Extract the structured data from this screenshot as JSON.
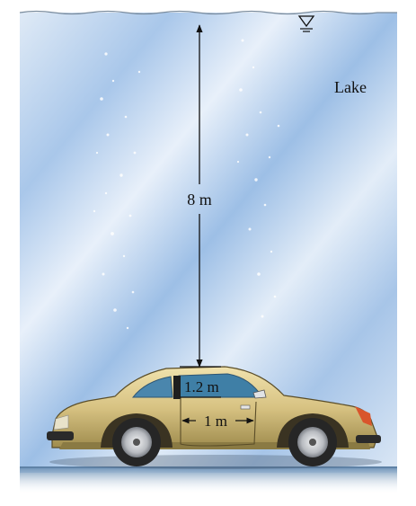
{
  "figure": {
    "environment_label": "Lake",
    "depth_label": "8 m",
    "door_height_label": "1.2 m",
    "door_width_label": "1 m",
    "free_surface_icon": "water-surface-triangle-icon",
    "colors": {
      "water_light": "#e6eef8",
      "water_mid": "#b9d3ee",
      "water_dark": "#8fb3de",
      "lake_bed": "#7fa3c6",
      "car_body": "#d9c58a",
      "car_body_shadow": "#a99757",
      "window": "#3f7fa6",
      "tire": "#2a2a2a",
      "wheel_rim": "#c9ccd0",
      "dimension_line": "#111111"
    }
  }
}
